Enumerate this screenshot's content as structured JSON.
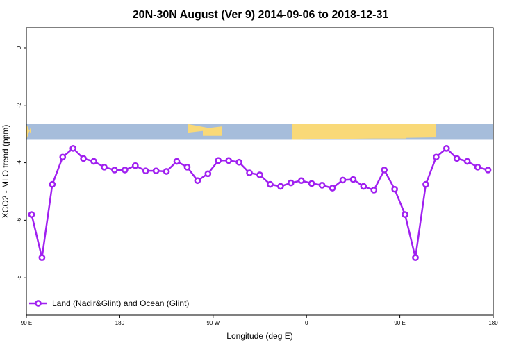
{
  "chart_data": {
    "type": "line",
    "title": "20N-30N August (Ver 9)   2014-09-06 to 2018-12-31",
    "xlabel": "Longitude (deg E)",
    "ylabel": "XCO2 - MLO trend (ppm)",
    "xlim": [
      90,
      540
    ],
    "ylim": [
      -9.3,
      0.7
    ],
    "x_ticks": [
      {
        "value": 90,
        "label": "90 E"
      },
      {
        "value": 180,
        "label": "180"
      },
      {
        "value": 270,
        "label": "90 W"
      },
      {
        "value": 360,
        "label": "0"
      },
      {
        "value": 450,
        "label": "90 E"
      },
      {
        "value": 540,
        "label": "180"
      }
    ],
    "y_ticks": [
      {
        "value": 0,
        "label": "0"
      },
      {
        "value": -2,
        "label": "-2"
      },
      {
        "value": -4,
        "label": "-4"
      },
      {
        "value": -6,
        "label": "-6"
      },
      {
        "value": -8,
        "label": "-8"
      }
    ],
    "map_strip": {
      "y_top": -2.65,
      "y_bottom": -3.2,
      "land_color": "#f9d978",
      "ocean_color": "#a6bddb"
    },
    "series": [
      {
        "name": "Land (Nadir&Glint) and Ocean (Glint)",
        "color": "#a020f0",
        "x": [
          95,
          105,
          115,
          125,
          135,
          145,
          155,
          165,
          175,
          185,
          195,
          205,
          215,
          225,
          235,
          245,
          255,
          265,
          275,
          285,
          295,
          305,
          315,
          325,
          335,
          345,
          355,
          365,
          375,
          385,
          395,
          405,
          415,
          425,
          435,
          445,
          455,
          465,
          475,
          485,
          495,
          505,
          515,
          525,
          535
        ],
        "values": [
          -5.8,
          -7.3,
          -4.75,
          -3.8,
          -3.5,
          -3.85,
          -3.95,
          -4.15,
          -4.25,
          -4.25,
          -4.1,
          -4.28,
          -4.28,
          -4.3,
          -3.95,
          -4.15,
          -4.62,
          -4.38,
          -3.92,
          -3.92,
          -3.98,
          -4.35,
          -4.42,
          -4.75,
          -4.82,
          -4.7,
          -4.62,
          -4.72,
          -4.78,
          -4.88,
          -4.6,
          -4.58,
          -4.82,
          -4.95,
          -4.25,
          -4.92,
          -5.8,
          -7.3,
          -4.75,
          -3.8,
          -3.5,
          -3.85,
          -3.95,
          -4.15,
          -4.25
        ]
      }
    ],
    "legend": {
      "position": "bottom-left"
    },
    "grid": false
  }
}
